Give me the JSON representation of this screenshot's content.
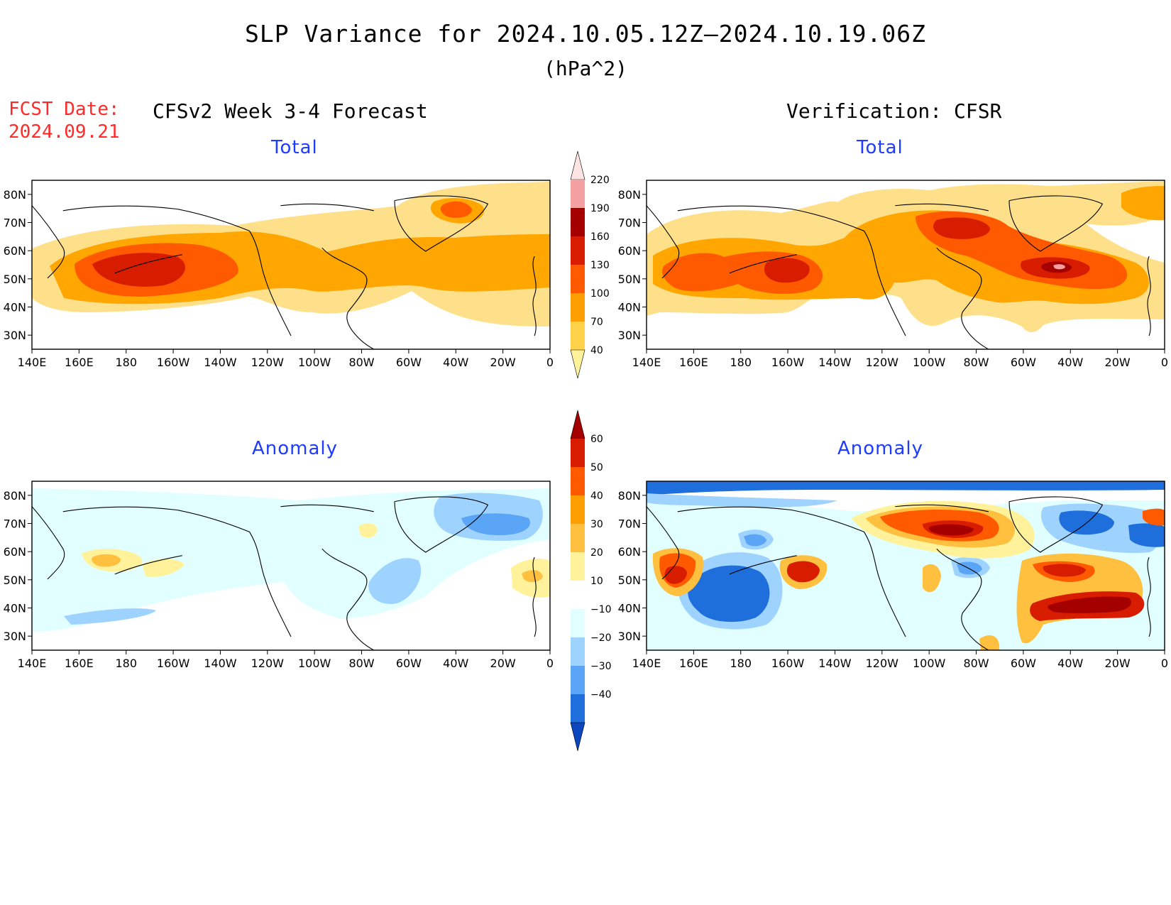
{
  "title": "SLP Variance for 2024.10.05.12Z–2024.10.19.06Z",
  "units": "(hPa^2)",
  "fcst_date_label": "FCST Date:",
  "fcst_date_value": "2024.09.21",
  "left_column_title": "CFSv2 Week 3-4 Forecast",
  "right_column_title": "Verification: CFSR",
  "panels": [
    {
      "id": "forecast-total",
      "title": "Total"
    },
    {
      "id": "verification-total",
      "title": "Total"
    },
    {
      "id": "forecast-anomaly",
      "title": "Anomaly"
    },
    {
      "id": "verification-anomaly",
      "title": "Anomaly"
    }
  ],
  "map_axes": {
    "lat_labels": [
      "80N",
      "70N",
      "60N",
      "50N",
      "40N",
      "30N"
    ],
    "lon_labels": [
      "140E",
      "160E",
      "180",
      "160W",
      "140W",
      "120W",
      "100W",
      "80W",
      "60W",
      "40W",
      "20W",
      "0"
    ]
  },
  "total_colorbar": {
    "labels": [
      "220",
      "190",
      "160",
      "130",
      "100",
      "70",
      "40"
    ],
    "colors": [
      "#ffe4e4",
      "#f4a0a0",
      "#a50000",
      "#d81c00",
      "#ff5a00",
      "#ff9e00",
      "#ffd24a",
      "#fff29a"
    ]
  },
  "anomaly_colorbar": {
    "labels": [
      "60",
      "50",
      "40",
      "30",
      "20",
      "10",
      "−10",
      "−20",
      "−30",
      "−40"
    ],
    "colors": [
      "#a50000",
      "#d81c00",
      "#ff5a00",
      "#ff9e00",
      "#ffc040",
      "#fff29a",
      "#ffffff",
      "#e1ffff",
      "#9fd3ff",
      "#5aa5f5",
      "#1e6edc",
      "#0a46be"
    ]
  }
}
